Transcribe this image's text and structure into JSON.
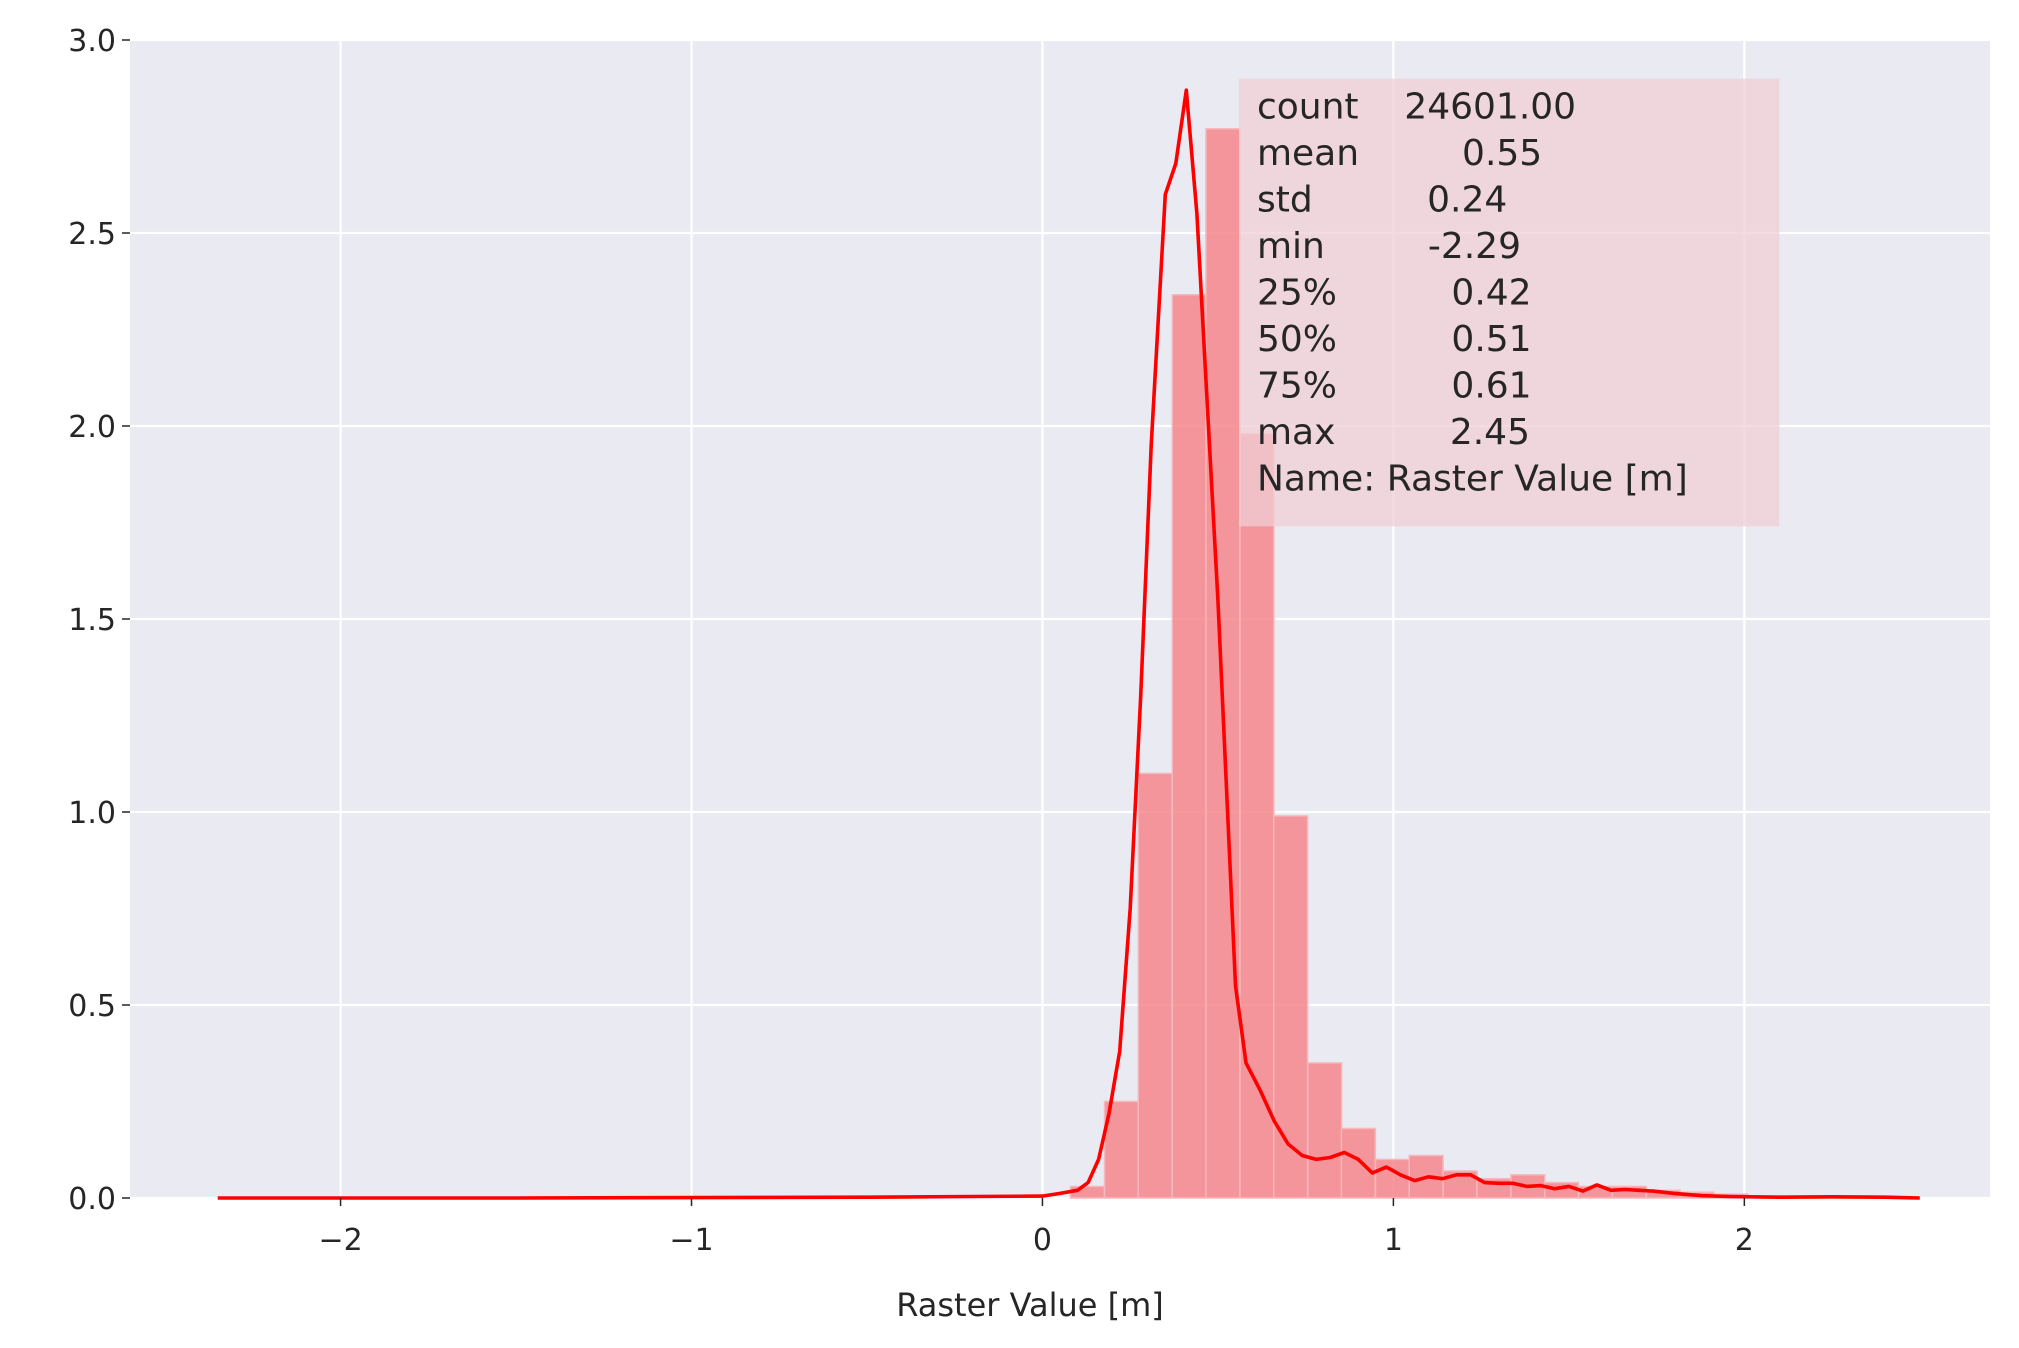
{
  "chart_data": {
    "type": "bar",
    "title": "",
    "xlabel": "Raster Value [m]",
    "ylabel": "",
    "xlim": [
      -2.6,
      2.7
    ],
    "ylim": [
      0,
      3.0
    ],
    "grid": true,
    "x_ticks": [
      -2,
      -1,
      0,
      1,
      2
    ],
    "x_tick_labels": [
      "−2",
      "−1",
      "0",
      "1",
      "2"
    ],
    "y_ticks": [
      0,
      0.5,
      1.0,
      1.5,
      2.0,
      2.5,
      3.0
    ],
    "y_tick_labels": [
      "0.0",
      "0.5",
      "1.0",
      "1.5",
      "2.0",
      "2.5",
      "3.0"
    ],
    "colors": {
      "background": "#eaeaf2",
      "grid": "#ffffff",
      "bars": "#f4868b",
      "kde": "#ff0000",
      "stats_box": "#f0cfd6"
    },
    "histogram": {
      "bin_width": 0.0965,
      "bins": [
        {
          "x0": 0.08,
          "value": 0.03
        },
        {
          "x0": 0.177,
          "value": 0.25
        },
        {
          "x0": 0.273,
          "value": 1.1
        },
        {
          "x0": 0.37,
          "value": 2.34
        },
        {
          "x0": 0.466,
          "value": 2.77
        },
        {
          "x0": 0.563,
          "value": 1.98
        },
        {
          "x0": 0.659,
          "value": 0.99
        },
        {
          "x0": 0.756,
          "value": 0.35
        },
        {
          "x0": 0.852,
          "value": 0.18
        },
        {
          "x0": 0.949,
          "value": 0.1
        },
        {
          "x0": 1.045,
          "value": 0.11
        },
        {
          "x0": 1.142,
          "value": 0.07
        },
        {
          "x0": 1.238,
          "value": 0.05
        },
        {
          "x0": 1.335,
          "value": 0.06
        },
        {
          "x0": 1.431,
          "value": 0.04
        },
        {
          "x0": 1.528,
          "value": 0.03
        },
        {
          "x0": 1.624,
          "value": 0.03
        },
        {
          "x0": 1.721,
          "value": 0.02
        },
        {
          "x0": 1.817,
          "value": 0.015
        },
        {
          "x0": 1.914,
          "value": 0.01
        },
        {
          "x0": 2.01,
          "value": 0.005
        },
        {
          "x0": 2.107,
          "value": 0.003
        },
        {
          "x0": 2.203,
          "value": 0.003
        },
        {
          "x0": 2.3,
          "value": 0.002
        },
        {
          "x0": 2.396,
          "value": 0.002
        }
      ]
    },
    "kde": {
      "x": [
        -2.35,
        -1.5,
        -0.5,
        -0.2,
        0.0,
        0.05,
        0.1,
        0.13,
        0.16,
        0.19,
        0.22,
        0.25,
        0.28,
        0.31,
        0.35,
        0.38,
        0.41,
        0.44,
        0.47,
        0.5,
        0.525,
        0.55,
        0.58,
        0.62,
        0.66,
        0.7,
        0.74,
        0.78,
        0.82,
        0.86,
        0.9,
        0.94,
        0.98,
        1.02,
        1.06,
        1.1,
        1.14,
        1.18,
        1.22,
        1.26,
        1.3,
        1.34,
        1.38,
        1.42,
        1.46,
        1.5,
        1.54,
        1.58,
        1.62,
        1.66,
        1.7,
        1.74,
        1.8,
        1.88,
        1.96,
        2.1,
        2.25,
        2.4,
        2.5
      ],
      "y": [
        0.0,
        0.0,
        0.002,
        0.004,
        0.005,
        0.012,
        0.02,
        0.04,
        0.1,
        0.22,
        0.38,
        0.75,
        1.3,
        1.95,
        2.6,
        2.68,
        2.87,
        2.55,
        2.05,
        1.55,
        1.05,
        0.55,
        0.35,
        0.28,
        0.2,
        0.14,
        0.11,
        0.1,
        0.105,
        0.118,
        0.1,
        0.065,
        0.08,
        0.06,
        0.045,
        0.055,
        0.05,
        0.06,
        0.06,
        0.04,
        0.038,
        0.038,
        0.03,
        0.032,
        0.024,
        0.03,
        0.018,
        0.034,
        0.02,
        0.022,
        0.02,
        0.018,
        0.012,
        0.006,
        0.004,
        0.002,
        0.003,
        0.002,
        0.0
      ]
    },
    "annotation": {
      "lines": [
        "count    24601.00",
        "mean         0.55",
        "std          0.24",
        "min         -2.29",
        "25%          0.42",
        "50%          0.51",
        "75%          0.61",
        "max          2.45",
        "Name: Raster Value [m]"
      ],
      "placement": "upper-right of center"
    }
  }
}
